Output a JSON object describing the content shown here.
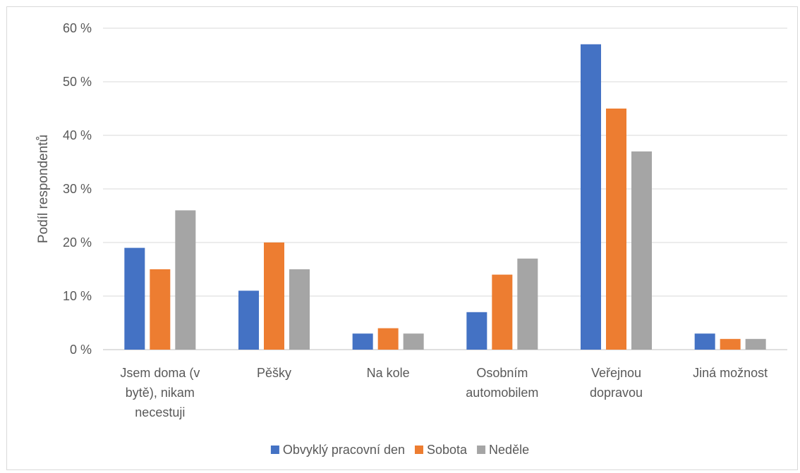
{
  "chart_data": {
    "type": "bar",
    "title": "",
    "xlabel": "",
    "ylabel": "Podíl respondentů",
    "ylim": [
      0,
      60
    ],
    "y_ticks": [
      0,
      10,
      20,
      30,
      40,
      50,
      60
    ],
    "y_tick_format": "{v} %",
    "grid": true,
    "legend_position": "bottom",
    "categories": [
      [
        "Jsem doma (v",
        "bytě), nikam",
        "necestuji"
      ],
      [
        "Pěšky"
      ],
      [
        "Na kole"
      ],
      [
        "Osobním",
        "automobilem"
      ],
      [
        "Veřejnou",
        "dopravou"
      ],
      [
        "Jiná možnost"
      ]
    ],
    "series": [
      {
        "name": "Obvyklý pracovní den",
        "color": "#4472c4",
        "values": [
          19,
          11,
          3,
          7,
          57,
          3
        ]
      },
      {
        "name": "Sobota",
        "color": "#ed7d31",
        "values": [
          15,
          20,
          4,
          14,
          45,
          2
        ]
      },
      {
        "name": "Neděle",
        "color": "#a5a5a5",
        "values": [
          26,
          15,
          3,
          17,
          37,
          2
        ]
      }
    ]
  }
}
